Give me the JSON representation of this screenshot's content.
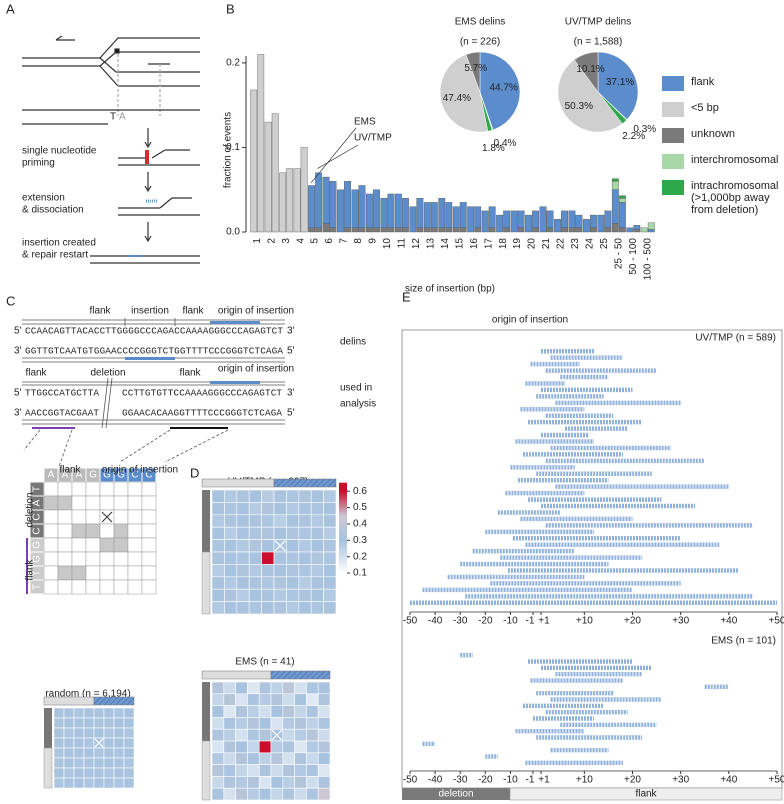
{
  "panel_labels": [
    "A",
    "B",
    "C",
    "D",
    "E"
  ],
  "panel_a": {
    "bases": [
      "T",
      "A"
    ],
    "steps": [
      [
        "single nucleotide",
        "priming"
      ],
      [
        "extension",
        "& dissociation"
      ],
      [
        "insertion created",
        "& repair restart"
      ]
    ]
  },
  "panel_c": {
    "top_labels": [
      "flank",
      "insertion",
      "flank",
      "origin of insertion"
    ],
    "ends": [
      "5'",
      "3'"
    ],
    "delins_seq": [
      "CCAACAGTTACACCTTGGGGCCCAGACCAAAAGGGCCCAGAGTCT",
      "GGTTGTCAATGTGGAACCCCGGGTCTGGTTTTCCCGGGTCTCAGA"
    ],
    "delins_label": "delins",
    "analysis_labels": [
      "flank",
      "deletion",
      "flank",
      "origin of insertion"
    ],
    "analysis_seq": [
      "TTGGCCATGCTTA",
      "CCTTGTGTTCCAAAAGGGCCCAGAGTCT",
      "AACCGGTACGAAT",
      "GGAACACAAGGTTTTCCCGGGTCTCAGA"
    ],
    "analysis_label": [
      "used in",
      "analysis"
    ],
    "grid": {
      "top_headers": [
        "flank",
        "origin of insertion"
      ],
      "side_headers": [
        "deletion",
        "flank"
      ],
      "top": [
        "A",
        "A",
        "A",
        "G",
        "G",
        "G",
        "C",
        "C"
      ],
      "side": [
        "T",
        "A",
        "C",
        "C",
        "G",
        "G",
        "T",
        "T"
      ]
    }
  },
  "panel_e": {
    "title": "origin of insertion",
    "bar": [
      "deletion",
      "flank"
    ]
  },
  "chart_data": [
    {
      "type": "bar",
      "ylabel": "fraction of events",
      "xlabel": "size of insertion (bp)",
      "annotations": [
        "EMS",
        "UV/TMP"
      ],
      "categories": [
        "1",
        "2",
        "3",
        "4",
        "5",
        "6",
        "7",
        "8",
        "9",
        "10",
        "11",
        "12",
        "13",
        "14",
        "15",
        "16",
        "17",
        "18",
        "19",
        "20",
        "21",
        "22",
        "23",
        "24",
        "25",
        "25 - 50",
        "50 - 100",
        "100 - 500"
      ],
      "ylim": [
        0,
        0.22
      ],
      "yticks": [
        {
          "value": 0,
          "label": "0.0"
        },
        0.1,
        0.2
      ],
      "series": [
        {
          "name": "flank",
          "color": "#5b8ccc",
          "values": [
            0,
            0,
            0,
            0,
            0.05,
            0.055,
            0.05,
            0.045,
            0.04,
            0.035,
            0.04,
            0.03,
            0.03,
            0.035,
            0.025,
            0.03,
            0.025,
            0.02,
            0.025,
            0.02,
            0.03,
            0.015,
            0.02,
            0.015,
            0.02,
            0.04,
            0.005,
            0
          ],
          "values_uv": [
            0,
            0,
            0,
            0,
            0.065,
            0.055,
            0.055,
            0.05,
            0.045,
            0.04,
            0.035,
            0.035,
            0.03,
            0.03,
            0.03,
            0.025,
            0.025,
            0.02,
            0.02,
            0.02,
            0.02,
            0.02,
            0.015,
            0.015,
            0.02,
            0.03,
            0.005,
            0.003
          ]
        },
        {
          "name": "<5 bp",
          "color": "#cfcfcf",
          "values": [
            0.168,
            0.13,
            0.07,
            0.075,
            0,
            0,
            0,
            0,
            0,
            0,
            0,
            0,
            0,
            0,
            0,
            0,
            0,
            0,
            0,
            0,
            0,
            0,
            0,
            0,
            0,
            0,
            0,
            0
          ],
          "values_uv": [
            0.21,
            0.14,
            0.075,
            0.1,
            0,
            0,
            0,
            0,
            0,
            0,
            0,
            0,
            0,
            0,
            0,
            0,
            0,
            0,
            0,
            0,
            0,
            0,
            0,
            0,
            0,
            0,
            0,
            0
          ]
        },
        {
          "name": "unknown",
          "color": "#7a7a7a",
          "values": [
            0,
            0,
            0,
            0,
            0.005,
            0.01,
            0,
            0.005,
            0.005,
            0.005,
            0.005,
            0,
            0.005,
            0.005,
            0.005,
            0,
            0,
            0,
            0,
            0,
            0,
            0,
            0.005,
            0,
            0,
            0.01,
            0,
            0
          ],
          "values_uv": [
            0,
            0,
            0,
            0,
            0.005,
            0.005,
            0.005,
            0.005,
            0.005,
            0.005,
            0.005,
            0.005,
            0.005,
            0.005,
            0.005,
            0.005,
            0.005,
            0.005,
            0.005,
            0.005,
            0.005,
            0.005,
            0.005,
            0.005,
            0.005,
            0.005,
            0.003,
            0
          ]
        },
        {
          "name": "interchromosomal",
          "color": "#a8d8a8",
          "values": [
            0,
            0,
            0,
            0,
            0,
            0,
            0,
            0,
            0,
            0,
            0,
            0,
            0,
            0,
            0,
            0,
            0,
            0,
            0,
            0,
            0,
            0,
            0,
            0,
            0,
            0.01,
            0,
            0.005
          ],
          "values_uv": [
            0,
            0,
            0,
            0,
            0,
            0,
            0,
            0,
            0,
            0,
            0,
            0,
            0,
            0,
            0,
            0,
            0,
            0,
            0,
            0,
            0,
            0,
            0,
            0,
            0,
            0.005,
            0,
            0.008
          ]
        },
        {
          "name": "intrachromosomal (>1,000bp away from deletion)",
          "color": "#2ea84a",
          "values": [
            0,
            0,
            0,
            0,
            0,
            0,
            0,
            0,
            0,
            0,
            0,
            0,
            0,
            0,
            0,
            0,
            0,
            0,
            0,
            0,
            0,
            0,
            0,
            0,
            0,
            0.003,
            0,
            0
          ],
          "values_uv": [
            0,
            0,
            0,
            0,
            0,
            0,
            0,
            0,
            0,
            0,
            0,
            0,
            0,
            0,
            0,
            0,
            0,
            0,
            0,
            0,
            0,
            0,
            0,
            0,
            0,
            0.003,
            0,
            0
          ]
        }
      ]
    },
    {
      "type": "pie",
      "title": "EMS delins",
      "subtitle": "(n = 226)",
      "colors": [
        "#5b8ccc",
        "#cfcfcf",
        "#7a7a7a",
        "#a8d8a8",
        "#2ea84a"
      ],
      "values": [
        44.7,
        47.4,
        5.7,
        0.4,
        1.8
      ],
      "value_labels": [
        "44.7%",
        "47.4%",
        "5.7%",
        "0.4%",
        "1.8%"
      ]
    },
    {
      "type": "pie",
      "title": "UV/TMP delins",
      "subtitle": "(n = 1,588)",
      "colors": [
        "#5b8ccc",
        "#cfcfcf",
        "#7a7a7a",
        "#a8d8a8",
        "#2ea84a"
      ],
      "values": [
        37.1,
        50.3,
        10.1,
        0.3,
        2.2
      ],
      "value_labels": [
        "37.1%",
        "50.3%",
        "10.1%",
        "0.3%",
        "2.2%"
      ]
    },
    {
      "type": "heatmap",
      "title": "UV/TMP (n = 227)",
      "colorbar_lim": [
        0.07,
        0.65
      ],
      "colorbar_ticks": [
        0.1,
        0.2,
        0.3,
        0.4,
        0.5,
        0.6
      ],
      "values": [
        [
          0.3,
          0.28,
          0.32,
          0.3,
          0.27,
          0.31,
          0.29,
          0.33,
          0.3,
          0.28
        ],
        [
          0.31,
          0.29,
          0.3,
          0.27,
          0.33,
          0.3,
          0.28,
          0.31,
          0.29,
          0.3
        ],
        [
          0.28,
          0.32,
          0.3,
          0.31,
          0.29,
          0.26,
          0.3,
          0.32,
          0.28,
          0.31
        ],
        [
          0.3,
          0.27,
          0.31,
          0.29,
          0.32,
          0.3,
          0.33,
          0.29,
          0.31,
          0.27
        ],
        [
          0.29,
          0.31,
          0.28,
          0.33,
          0.3,
          0.29,
          0.3,
          0.28,
          0.3,
          0.32
        ],
        [
          0.32,
          0.3,
          0.29,
          0.3,
          0.62,
          0.31,
          0.29,
          0.3,
          0.33,
          0.29
        ],
        [
          0.27,
          0.3,
          0.33,
          0.28,
          0.31,
          0.3,
          0.32,
          0.29,
          0.28,
          0.3
        ],
        [
          0.31,
          0.28,
          0.3,
          0.32,
          0.29,
          0.33,
          0.3,
          0.27,
          0.31,
          0.3
        ],
        [
          0.3,
          0.32,
          0.27,
          0.3,
          0.31,
          0.28,
          0.29,
          0.32,
          0.3,
          0.28
        ],
        [
          0.28,
          0.3,
          0.31,
          0.29,
          0.3,
          0.32,
          0.28,
          0.3,
          0.29,
          0.31
        ]
      ]
    },
    {
      "type": "heatmap",
      "title": "EMS (n = 41)",
      "values": [
        [
          0.35,
          0.22,
          0.3,
          0.18,
          0.33,
          0.25,
          0.38,
          0.2,
          0.29,
          0.31
        ],
        [
          0.24,
          0.36,
          0.19,
          0.31,
          0.27,
          0.34,
          0.22,
          0.3,
          0.17,
          0.33
        ],
        [
          0.3,
          0.18,
          0.33,
          0.26,
          0.21,
          0.3,
          0.36,
          0.24,
          0.32,
          0.2
        ],
        [
          0.21,
          0.31,
          0.27,
          0.35,
          0.3,
          0.19,
          0.28,
          0.33,
          0.25,
          0.29
        ],
        [
          0.33,
          0.26,
          0.2,
          0.29,
          0.34,
          0.31,
          0.23,
          0.27,
          0.36,
          0.22
        ],
        [
          0.19,
          0.34,
          0.3,
          0.24,
          0.6,
          0.27,
          0.32,
          0.18,
          0.28,
          0.35
        ],
        [
          0.28,
          0.22,
          0.35,
          0.31,
          0.25,
          0.36,
          0.2,
          0.33,
          0.23,
          0.3
        ],
        [
          0.36,
          0.29,
          0.24,
          0.2,
          0.32,
          0.22,
          0.34,
          0.28,
          0.31,
          0.18
        ],
        [
          0.23,
          0.33,
          0.28,
          0.34,
          0.19,
          0.3,
          0.26,
          0.35,
          0.21,
          0.32
        ],
        [
          0.31,
          0.2,
          0.36,
          0.27,
          0.3,
          0.24,
          0.33,
          0.22,
          0.29,
          0.45
        ]
      ]
    },
    {
      "type": "heatmap",
      "title": "random (n = 6,194)",
      "values": [
        [
          0.3,
          0.31,
          0.29,
          0.3,
          0.31,
          0.3,
          0.29,
          0.3
        ],
        [
          0.29,
          0.3,
          0.31,
          0.3,
          0.29,
          0.31,
          0.3,
          0.3
        ],
        [
          0.31,
          0.29,
          0.3,
          0.31,
          0.3,
          0.29,
          0.31,
          0.29
        ],
        [
          0.3,
          0.31,
          0.3,
          0.29,
          0.31,
          0.3,
          0.3,
          0.31
        ],
        [
          0.29,
          0.3,
          0.31,
          0.3,
          0.29,
          0.31,
          0.29,
          0.3
        ],
        [
          0.31,
          0.3,
          0.29,
          0.31,
          0.3,
          0.3,
          0.31,
          0.29
        ],
        [
          0.3,
          0.29,
          0.3,
          0.3,
          0.31,
          0.29,
          0.3,
          0.31
        ],
        [
          0.29,
          0.31,
          0.3,
          0.29,
          0.3,
          0.31,
          0.29,
          0.3
        ]
      ]
    },
    {
      "type": "interval",
      "title": "UV/TMP (n = 589)",
      "xlim": [
        -50,
        50
      ],
      "color": "#8fb1dc",
      "xticks": [
        -50,
        -40,
        -30,
        -20,
        -10,
        -1,
        {
          "value": 1,
          "label": "+1"
        },
        {
          "value": 10,
          "label": "+10"
        },
        {
          "value": 20,
          "label": "+20"
        },
        {
          "value": 30,
          "label": "+30"
        },
        {
          "value": 40,
          "label": "+40"
        },
        {
          "value": 50,
          "label": "+50"
        }
      ],
      "values": [
        [
          1,
          12
        ],
        [
          3,
          18
        ],
        [
          -2,
          9
        ],
        [
          2,
          25
        ],
        [
          5,
          15
        ],
        [
          -4,
          6
        ],
        [
          1,
          20
        ],
        [
          0,
          14
        ],
        [
          4,
          30
        ],
        [
          -6,
          10
        ],
        [
          2,
          16
        ],
        [
          -3,
          22
        ],
        [
          6,
          19
        ],
        [
          1,
          11
        ],
        [
          -8,
          12
        ],
        [
          3,
          28
        ],
        [
          -5,
          18
        ],
        [
          2,
          35
        ],
        [
          -10,
          8
        ],
        [
          0,
          24
        ],
        [
          -7,
          15
        ],
        [
          4,
          40
        ],
        [
          -12,
          10
        ],
        [
          -3,
          26
        ],
        [
          1,
          33
        ],
        [
          -15,
          5
        ],
        [
          -6,
          20
        ],
        [
          2,
          45
        ],
        [
          -20,
          12
        ],
        [
          -9,
          30
        ],
        [
          -4,
          38
        ],
        [
          -25,
          8
        ],
        [
          -14,
          22
        ],
        [
          -30,
          15
        ],
        [
          -11,
          42
        ],
        [
          -35,
          10
        ],
        [
          -18,
          30
        ],
        [
          -45,
          20
        ],
        [
          -28,
          45
        ],
        [
          -50,
          50
        ]
      ]
    },
    {
      "type": "interval",
      "title": "EMS (n = 101)",
      "xlim": [
        -50,
        50
      ],
      "color": "#8fb1dc",
      "xticks": [
        -50,
        -40,
        -30,
        -20,
        -10,
        -1,
        {
          "value": 1,
          "label": "+1"
        },
        {
          "value": 10,
          "label": "+10"
        },
        {
          "value": 20,
          "label": "+20"
        },
        {
          "value": 30,
          "label": "+30"
        },
        {
          "value": 40,
          "label": "+40"
        },
        {
          "value": 50,
          "label": "+50"
        }
      ],
      "values": [
        [
          -30,
          -25
        ],
        [
          -3,
          20
        ],
        [
          1,
          24
        ],
        [
          4,
          22
        ],
        [
          -2,
          18
        ],
        [
          35,
          40
        ],
        [
          0,
          16
        ],
        [
          3,
          26
        ],
        [
          -5,
          14
        ],
        [
          2,
          19
        ],
        [
          -1,
          12
        ],
        [
          5,
          25
        ],
        [
          -8,
          10
        ],
        [
          0,
          22
        ],
        [
          -45,
          -40
        ],
        [
          3,
          15
        ],
        [
          -20,
          -15
        ],
        [
          -4,
          18
        ]
      ]
    }
  ]
}
